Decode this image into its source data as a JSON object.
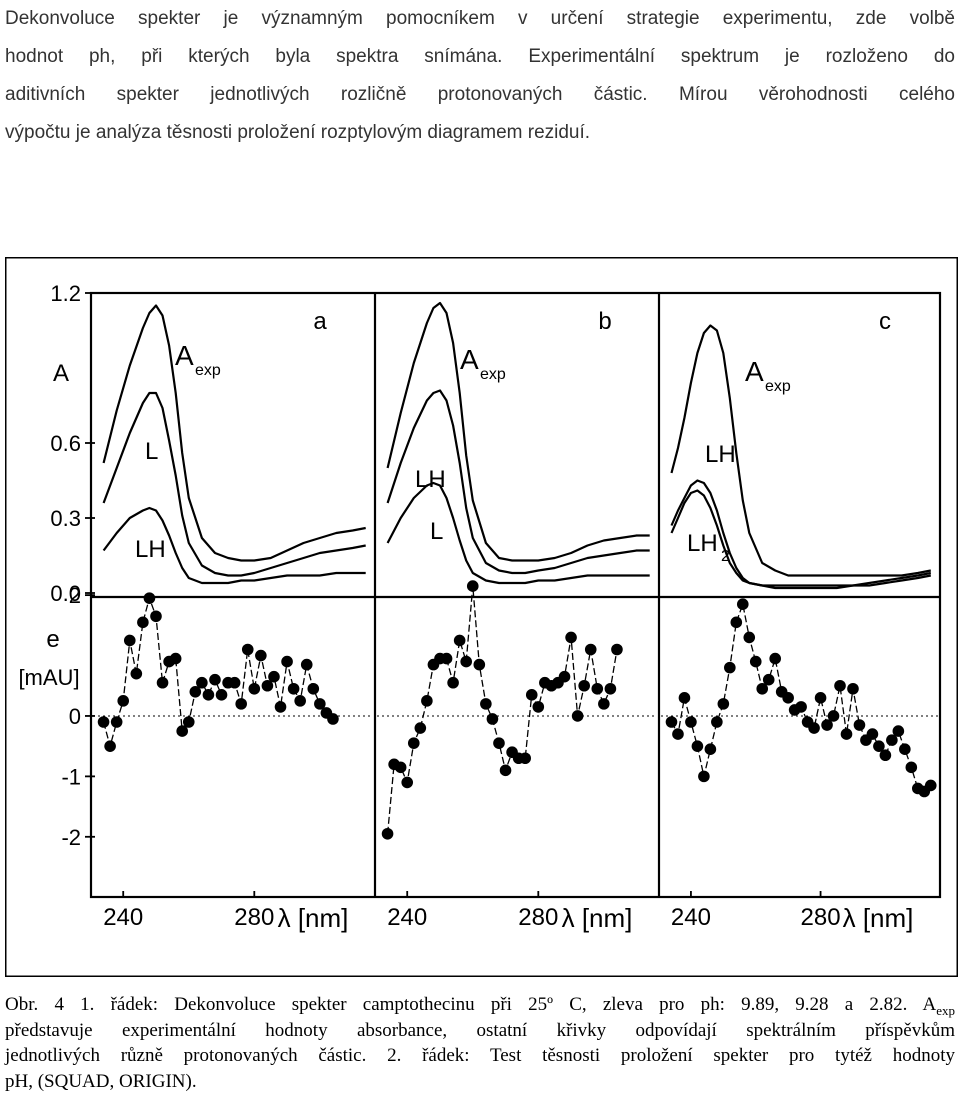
{
  "paragraph": {
    "lines": [
      "Dekonvoluce spekter je významným pomocníkem v určení strategie experimentu, zde volbě",
      "hodnot ph, při kterých byla spektra snímána. Experimentální spektrum je rozloženo do",
      "aditivních spekter jednotlivých rozličně protonovaných částic. Mírou věrohodnosti celého",
      "výpočtu je analýza těsnosti proložení rozptylovým diagramem reziduí."
    ]
  },
  "figure": {
    "y_axis_top_label": "A",
    "y_axis_bottom_label": "e",
    "y_axis_bottom_unit": "[mAU]",
    "x_axis_label": "λ [nm]",
    "chart_data": [
      {
        "type": "line",
        "panel": "a",
        "xlim": [
          232,
          315
        ],
        "ylim": [
          0,
          1.2
        ],
        "yticks": [
          "1.2",
          "0.6",
          "0.3",
          "0.0"
        ],
        "series": [
          {
            "name": "Aexp",
            "x": [
              234,
              238,
              242,
              246,
              248,
              250,
              252,
              254,
              256,
              258,
              260,
              264,
              268,
              272,
              276,
              280,
              285,
              290,
              295,
              300,
              305,
              310,
              314
            ],
            "values": [
              0.52,
              0.73,
              0.91,
              1.06,
              1.12,
              1.15,
              1.11,
              0.99,
              0.8,
              0.56,
              0.38,
              0.22,
              0.16,
              0.14,
              0.13,
              0.13,
              0.14,
              0.17,
              0.2,
              0.22,
              0.24,
              0.25,
              0.26
            ]
          },
          {
            "name": "L",
            "x": [
              234,
              238,
              242,
              246,
              248,
              250,
              252,
              254,
              256,
              258,
              260,
              264,
              268,
              272,
              276,
              280,
              285,
              290,
              295,
              300,
              305,
              310,
              314
            ],
            "values": [
              0.36,
              0.5,
              0.64,
              0.76,
              0.8,
              0.8,
              0.74,
              0.61,
              0.47,
              0.31,
              0.2,
              0.11,
              0.08,
              0.07,
              0.07,
              0.08,
              0.1,
              0.12,
              0.14,
              0.16,
              0.17,
              0.18,
              0.19
            ]
          },
          {
            "name": "LH",
            "x": [
              234,
              238,
              242,
              246,
              248,
              250,
              252,
              254,
              256,
              258,
              260,
              264,
              268,
              272,
              276,
              280,
              285,
              290,
              295,
              300,
              305,
              310,
              314
            ],
            "values": [
              0.17,
              0.24,
              0.3,
              0.33,
              0.34,
              0.33,
              0.29,
              0.23,
              0.16,
              0.1,
              0.06,
              0.04,
              0.04,
              0.04,
              0.05,
              0.05,
              0.06,
              0.07,
              0.07,
              0.07,
              0.08,
              0.08,
              0.08
            ]
          }
        ]
      },
      {
        "type": "line",
        "panel": "b",
        "xlim": [
          232,
          315
        ],
        "ylim": [
          0,
          1.2
        ],
        "series": [
          {
            "name": "Aexp",
            "x": [
              234,
              238,
              242,
              246,
              248,
              250,
              252,
              254,
              256,
              258,
              260,
              264,
              268,
              272,
              276,
              280,
              285,
              290,
              295,
              300,
              305,
              310,
              314
            ],
            "values": [
              0.5,
              0.72,
              0.92,
              1.08,
              1.14,
              1.16,
              1.12,
              1.0,
              0.8,
              0.55,
              0.37,
              0.2,
              0.14,
              0.13,
              0.13,
              0.13,
              0.14,
              0.16,
              0.19,
              0.21,
              0.22,
              0.23,
              0.23
            ]
          },
          {
            "name": "LH",
            "x": [
              234,
              238,
              242,
              246,
              248,
              250,
              252,
              254,
              256,
              258,
              260,
              264,
              268,
              272,
              276,
              280,
              285,
              290,
              295,
              300,
              305,
              310,
              314
            ],
            "values": [
              0.36,
              0.52,
              0.66,
              0.77,
              0.8,
              0.81,
              0.77,
              0.67,
              0.52,
              0.34,
              0.22,
              0.12,
              0.09,
              0.08,
              0.08,
              0.09,
              0.1,
              0.12,
              0.14,
              0.15,
              0.16,
              0.17,
              0.17
            ]
          },
          {
            "name": "L",
            "x": [
              234,
              238,
              242,
              246,
              248,
              250,
              252,
              254,
              256,
              258,
              260,
              264,
              268,
              272,
              276,
              280,
              285,
              290,
              295,
              300,
              305,
              310,
              314
            ],
            "values": [
              0.2,
              0.3,
              0.38,
              0.43,
              0.44,
              0.43,
              0.38,
              0.3,
              0.21,
              0.13,
              0.08,
              0.05,
              0.04,
              0.04,
              0.04,
              0.05,
              0.05,
              0.06,
              0.07,
              0.07,
              0.07,
              0.07,
              0.07
            ]
          }
        ]
      },
      {
        "type": "line",
        "panel": "c",
        "xlim": [
          232,
          315
        ],
        "ylim": [
          0,
          1.2
        ],
        "series": [
          {
            "name": "Aexp",
            "x": [
              234,
              236,
              238,
              240,
              242,
              244,
              246,
              248,
              250,
              252,
              254,
              256,
              258,
              262,
              266,
              270,
              275,
              280,
              285,
              290,
              295,
              300,
              305,
              310,
              314
            ],
            "values": [
              0.48,
              0.58,
              0.7,
              0.84,
              0.96,
              1.04,
              1.07,
              1.05,
              0.96,
              0.78,
              0.56,
              0.37,
              0.24,
              0.12,
              0.09,
              0.07,
              0.07,
              0.07,
              0.07,
              0.07,
              0.07,
              0.07,
              0.07,
              0.08,
              0.09
            ]
          },
          {
            "name": "LH",
            "x": [
              234,
              236,
              238,
              240,
              242,
              244,
              246,
              248,
              250,
              252,
              254,
              256,
              258,
              262,
              266,
              270,
              275,
              280,
              285,
              290,
              295,
              300,
              305,
              310,
              314
            ],
            "values": [
              0.27,
              0.33,
              0.38,
              0.43,
              0.45,
              0.44,
              0.4,
              0.33,
              0.24,
              0.16,
              0.1,
              0.06,
              0.04,
              0.03,
              0.02,
              0.02,
              0.02,
              0.02,
              0.02,
              0.03,
              0.04,
              0.05,
              0.06,
              0.07,
              0.08
            ]
          },
          {
            "name": "LH2",
            "x": [
              234,
              236,
              238,
              240,
              242,
              244,
              246,
              248,
              250,
              252,
              254,
              256,
              258,
              262,
              266,
              270,
              275,
              280,
              285,
              290,
              295,
              300,
              305,
              310,
              314
            ],
            "values": [
              0.24,
              0.3,
              0.36,
              0.4,
              0.41,
              0.39,
              0.34,
              0.27,
              0.19,
              0.12,
              0.08,
              0.05,
              0.04,
              0.03,
              0.03,
              0.03,
              0.03,
              0.03,
              0.03,
              0.03,
              0.03,
              0.04,
              0.05,
              0.06,
              0.07
            ]
          }
        ]
      },
      {
        "type": "scatter",
        "panel": "a",
        "xlim": [
          232,
          315
        ],
        "ylim": [
          -2.5,
          2.3
        ],
        "yticks": [
          "2",
          "0",
          "-1",
          "-2"
        ],
        "xticks": [
          "240",
          "280"
        ],
        "x": [
          234,
          236,
          238,
          240,
          242,
          244,
          246,
          248,
          250,
          252,
          254,
          256,
          258,
          260,
          262,
          264,
          266,
          268,
          270,
          272,
          274,
          276,
          278,
          280,
          282,
          284,
          286,
          288,
          290,
          292,
          294,
          296,
          298,
          300,
          302,
          304
        ],
        "values": [
          -0.1,
          -0.5,
          -0.1,
          0.25,
          1.25,
          0.7,
          1.55,
          1.95,
          1.65,
          0.55,
          0.9,
          0.95,
          -0.25,
          -0.1,
          0.4,
          0.55,
          0.35,
          0.6,
          0.35,
          0.55,
          0.55,
          0.2,
          1.1,
          0.45,
          1.0,
          0.5,
          0.65,
          0.15,
          0.9,
          0.45,
          0.25,
          0.85,
          0.45,
          0.2,
          0.05,
          -0.05
        ]
      },
      {
        "type": "scatter",
        "panel": "b",
        "xlim": [
          232,
          315
        ],
        "ylim": [
          -2.5,
          2.3
        ],
        "xticks": [
          "240",
          "280"
        ],
        "x": [
          234,
          236,
          238,
          240,
          242,
          244,
          246,
          248,
          250,
          252,
          254,
          256,
          258,
          260,
          262,
          264,
          266,
          268,
          270,
          272,
          274,
          276,
          278,
          280,
          282,
          284,
          286,
          288,
          290,
          292,
          294,
          296,
          298,
          300,
          302,
          304
        ],
        "values": [
          -1.95,
          -0.8,
          -0.85,
          -1.1,
          -0.45,
          -0.2,
          0.25,
          0.85,
          0.95,
          0.95,
          0.55,
          1.25,
          0.9,
          2.15,
          0.85,
          0.2,
          -0.05,
          -0.45,
          -0.9,
          -0.6,
          -0.7,
          -0.7,
          0.35,
          0.15,
          0.55,
          0.5,
          0.55,
          0.65,
          1.3,
          0.0,
          0.5,
          1.1,
          0.45,
          0.2,
          0.45,
          1.1
        ]
      },
      {
        "type": "scatter",
        "panel": "c",
        "xlim": [
          232,
          315
        ],
        "ylim": [
          -2.5,
          2.3
        ],
        "xticks": [
          "240",
          "280"
        ],
        "x": [
          234,
          236,
          238,
          240,
          242,
          244,
          246,
          248,
          250,
          252,
          254,
          256,
          258,
          260,
          262,
          264,
          266,
          268,
          270,
          272,
          274,
          276,
          278,
          280,
          282,
          284,
          286,
          288,
          290,
          292,
          294,
          296,
          298,
          300,
          302,
          304,
          306,
          308,
          310,
          312,
          314
        ],
        "values": [
          -0.1,
          -0.3,
          0.3,
          -0.1,
          -0.5,
          -1.0,
          -0.55,
          -0.1,
          0.2,
          0.8,
          1.55,
          1.85,
          1.3,
          0.9,
          0.45,
          0.6,
          0.95,
          0.4,
          0.3,
          0.1,
          0.15,
          -0.1,
          -0.2,
          0.3,
          -0.15,
          0.0,
          0.5,
          -0.3,
          0.45,
          -0.15,
          -0.4,
          -0.3,
          -0.5,
          -0.65,
          -0.4,
          -0.25,
          -0.55,
          -0.85,
          -1.2,
          -1.25,
          -1.15
        ]
      }
    ]
  },
  "caption": {
    "line1": "Obr. 4 1. řádek: Dekonvoluce spekter camptothecinu při 25º C, zleva pro ph: 9.89, 9.28 a 2.82. A",
    "line1_sub": "exp",
    "line2": "představuje experimentální hodnoty absorbance, ostatní křivky odpovídají spektrálním příspěvkům",
    "line3": "jednotlivých různě protonovaných částic. 2. řádek: Test těsnosti proložení spekter pro tytéž hodnoty",
    "line4": "pH, (SQUAD, ORIGIN)."
  }
}
